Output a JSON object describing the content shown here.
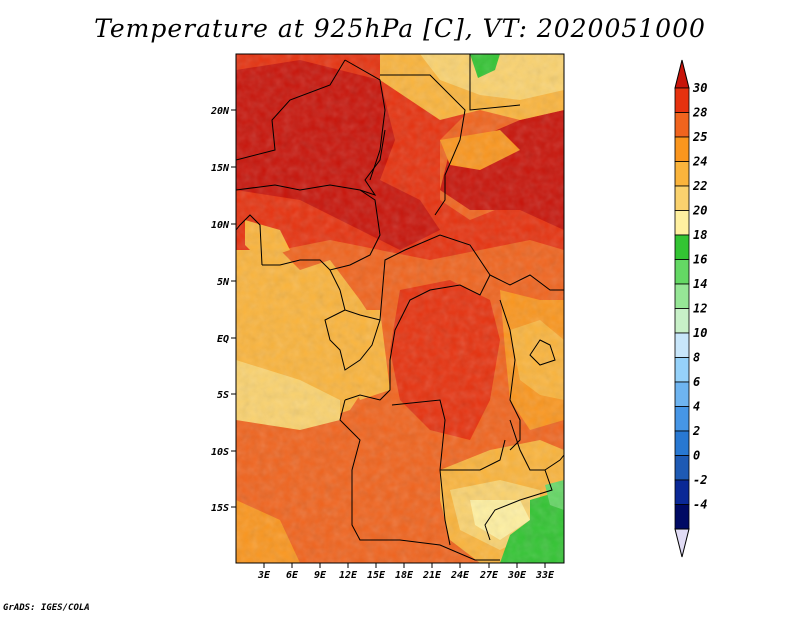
{
  "title": "Temperature at 925hPa [C], VT: 2020051000",
  "credit": "GrADS: IGES/COLA",
  "map": {
    "x_ticks": [
      "3E",
      "6E",
      "9E",
      "12E",
      "15E",
      "18E",
      "21E",
      "24E",
      "27E",
      "30E",
      "33E"
    ],
    "y_ticks": [
      "20N",
      "15N",
      "10N",
      "5N",
      "EQ",
      "5S",
      "10S",
      "15S"
    ]
  },
  "colorbar": {
    "labels": [
      "30",
      "28",
      "25",
      "24",
      "22",
      "20",
      "18",
      "16",
      "14",
      "12",
      "10",
      "8",
      "6",
      "4",
      "2",
      "0",
      "-2",
      "-4"
    ],
    "colors": [
      "#c8140a",
      "#e6320f",
      "#f0641e",
      "#fa961e",
      "#fab43c",
      "#fad26e",
      "#fff0a0",
      "#33c433",
      "#64d864",
      "#96e696",
      "#c8f0c8",
      "#c8e6fa",
      "#96d2fa",
      "#6eb4f0",
      "#4696e6",
      "#2878d2",
      "#1e5ab4",
      "#0a2896",
      "#000a64",
      "#e1dcf5"
    ]
  }
}
